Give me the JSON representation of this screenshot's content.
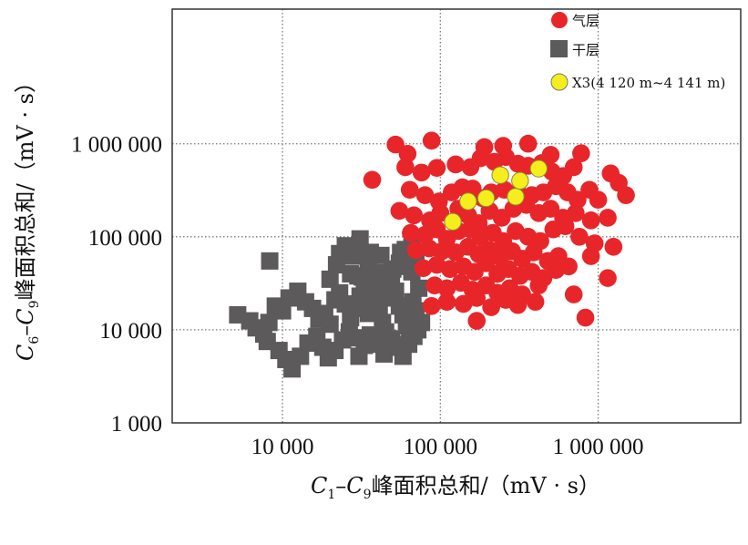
{
  "chart_data": {
    "type": "scatter",
    "title": "",
    "xlabel": "C1–C9峰面积总和/（mV·s）",
    "ylabel": "C6–C9峰面积总和/（mV·s）",
    "xlabel_parts": {
      "c": "C",
      "s1": "1",
      "dash": "–",
      "c2": "C",
      "s2": "9",
      "rest": "峰面积总和/（mV · s）"
    },
    "ylabel_parts": {
      "c": "C",
      "s1": "6",
      "dash": "–",
      "c2": "C",
      "s2": "9",
      "rest": "峰面积总和/（mV · s）"
    },
    "x_scale": "log",
    "y_scale": "log",
    "xlim": [
      2000,
      8000000
    ],
    "ylim": [
      1000,
      28000000
    ],
    "x_ticks": [
      {
        "value": 10000,
        "label": "10 000"
      },
      {
        "value": 100000,
        "label": "100 000"
      },
      {
        "value": 1000000,
        "label": "1 000 000"
      }
    ],
    "y_ticks": [
      {
        "value": 1000,
        "label": "1 000"
      },
      {
        "value": 10000,
        "label": "10 000"
      },
      {
        "value": 100000,
        "label": "100 000"
      },
      {
        "value": 1000000,
        "label": "1 000 000"
      }
    ],
    "grid": true,
    "legend_position": "top-right",
    "series": [
      {
        "name": "气层",
        "marker": "circle",
        "color": "#e8262a",
        "points": [
          [
            37000,
            410000
          ],
          [
            52000,
            980000
          ],
          [
            62000,
            780000
          ],
          [
            88000,
            1080000
          ],
          [
            190000,
            920000
          ],
          [
            250000,
            950000
          ],
          [
            360000,
            1000000
          ],
          [
            500000,
            760000
          ],
          [
            780000,
            790000
          ],
          [
            60000,
            560000
          ],
          [
            76000,
            490000
          ],
          [
            95000,
            550000
          ],
          [
            125000,
            600000
          ],
          [
            155000,
            560000
          ],
          [
            180000,
            700000
          ],
          [
            220000,
            640000
          ],
          [
            260000,
            720000
          ],
          [
            310000,
            610000
          ],
          [
            360000,
            580000
          ],
          [
            440000,
            620000
          ],
          [
            510000,
            500000
          ],
          [
            600000,
            450000
          ],
          [
            700000,
            560000
          ],
          [
            1200000,
            480000
          ],
          [
            1350000,
            380000
          ],
          [
            1500000,
            280000
          ],
          [
            64000,
            320000
          ],
          [
            80000,
            280000
          ],
          [
            98000,
            240000
          ],
          [
            118000,
            300000
          ],
          [
            138000,
            340000
          ],
          [
            160000,
            330000
          ],
          [
            185000,
            260000
          ],
          [
            210000,
            300000
          ],
          [
            255000,
            320000
          ],
          [
            310000,
            300000
          ],
          [
            380000,
            280000
          ],
          [
            450000,
            300000
          ],
          [
            540000,
            350000
          ],
          [
            640000,
            300000
          ],
          [
            740000,
            250000
          ],
          [
            880000,
            320000
          ],
          [
            1000000,
            250000
          ],
          [
            55000,
            190000
          ],
          [
            68000,
            170000
          ],
          [
            86000,
            150000
          ],
          [
            100000,
            180000
          ],
          [
            130000,
            200000
          ],
          [
            150000,
            170000
          ],
          [
            175000,
            140000
          ],
          [
            205000,
            190000
          ],
          [
            245000,
            160000
          ],
          [
            290000,
            200000
          ],
          [
            350000,
            220000
          ],
          [
            420000,
            180000
          ],
          [
            500000,
            200000
          ],
          [
            600000,
            160000
          ],
          [
            720000,
            180000
          ],
          [
            900000,
            150000
          ],
          [
            1150000,
            160000
          ],
          [
            65000,
            110000
          ],
          [
            80000,
            105000
          ],
          [
            95000,
            120000
          ],
          [
            110000,
            95000
          ],
          [
            130000,
            115000
          ],
          [
            155000,
            120000
          ],
          [
            180000,
            100000
          ],
          [
            215000,
            110000
          ],
          [
            250000,
            90000
          ],
          [
            300000,
            115000
          ],
          [
            360000,
            100000
          ],
          [
            430000,
            90000
          ],
          [
            520000,
            120000
          ],
          [
            620000,
            130000
          ],
          [
            760000,
            100000
          ],
          [
            950000,
            85000
          ],
          [
            1250000,
            78000
          ],
          [
            70000,
            72000
          ],
          [
            85000,
            75000
          ],
          [
            102000,
            70000
          ],
          [
            125000,
            68000
          ],
          [
            150000,
            78000
          ],
          [
            175000,
            65000
          ],
          [
            205000,
            72000
          ],
          [
            240000,
            60000
          ],
          [
            285000,
            70000
          ],
          [
            330000,
            58000
          ],
          [
            390000,
            68000
          ],
          [
            480000,
            55000
          ],
          [
            560000,
            62000
          ],
          [
            650000,
            48000
          ],
          [
            900000,
            62000
          ],
          [
            78000,
            46000
          ],
          [
            95000,
            50000
          ],
          [
            115000,
            45000
          ],
          [
            140000,
            48000
          ],
          [
            165000,
            42000
          ],
          [
            195000,
            52000
          ],
          [
            230000,
            40000
          ],
          [
            270000,
            45000
          ],
          [
            320000,
            38000
          ],
          [
            380000,
            42000
          ],
          [
            450000,
            36000
          ],
          [
            540000,
            44000
          ],
          [
            1150000,
            36000
          ],
          [
            92000,
            30000
          ],
          [
            110000,
            28000
          ],
          [
            135000,
            32000
          ],
          [
            160000,
            27000
          ],
          [
            195000,
            30000
          ],
          [
            230000,
            25000
          ],
          [
            275000,
            28000
          ],
          [
            330000,
            24000
          ],
          [
            420000,
            30000
          ],
          [
            700000,
            24000
          ],
          [
            88000,
            18000
          ],
          [
            110000,
            20000
          ],
          [
            140000,
            19000
          ],
          [
            170000,
            22000
          ],
          [
            210000,
            17500
          ],
          [
            260000,
            21000
          ],
          [
            310000,
            18500
          ],
          [
            400000,
            20000
          ],
          [
            170000,
            12500
          ],
          [
            830000,
            13500
          ]
        ]
      },
      {
        "name": "干层",
        "marker": "square",
        "color": "#5c5a5b",
        "points": [
          [
            5200,
            14500
          ],
          [
            6200,
            12500
          ],
          [
            6800,
            10500
          ],
          [
            7600,
            9000
          ],
          [
            8200,
            12000
          ],
          [
            9000,
            18000
          ],
          [
            10000,
            16000
          ],
          [
            11000,
            22000
          ],
          [
            12500,
            26000
          ],
          [
            14000,
            20000
          ],
          [
            15500,
            17000
          ],
          [
            17000,
            13000
          ],
          [
            18500,
            15000
          ],
          [
            20000,
            11500
          ],
          [
            21500,
            21000
          ],
          [
            23000,
            25000
          ],
          [
            25000,
            19000
          ],
          [
            27000,
            13500
          ],
          [
            29000,
            17000
          ],
          [
            31000,
            23000
          ],
          [
            33000,
            28000
          ],
          [
            35000,
            15000
          ],
          [
            37000,
            19500
          ],
          [
            39000,
            24500
          ],
          [
            41000,
            16000
          ],
          [
            43000,
            12000
          ],
          [
            45000,
            9500
          ],
          [
            47000,
            22000
          ],
          [
            49000,
            30000
          ],
          [
            52000,
            26000
          ],
          [
            55000,
            18000
          ],
          [
            58000,
            14500
          ],
          [
            61000,
            11000
          ],
          [
            64000,
            9000
          ],
          [
            67000,
            20000
          ],
          [
            70000,
            16000
          ],
          [
            73000,
            28000
          ],
          [
            76000,
            12000
          ],
          [
            8000,
            7500
          ],
          [
            9500,
            6000
          ],
          [
            10500,
            4800
          ],
          [
            11500,
            3800
          ],
          [
            13000,
            5200
          ],
          [
            14500,
            7200
          ],
          [
            16500,
            8500
          ],
          [
            18000,
            6500
          ],
          [
            19500,
            5000
          ],
          [
            21500,
            6000
          ],
          [
            24000,
            7800
          ],
          [
            26500,
            9500
          ],
          [
            28500,
            8200
          ],
          [
            30500,
            5200
          ],
          [
            33000,
            6800
          ],
          [
            36000,
            8800
          ],
          [
            40000,
            7000
          ],
          [
            44000,
            5500
          ],
          [
            49000,
            8000
          ],
          [
            53000,
            6500
          ],
          [
            58000,
            5200
          ],
          [
            63000,
            7000
          ],
          [
            68000,
            8500
          ],
          [
            72000,
            10000
          ],
          [
            8300,
            55000
          ],
          [
            20000,
            35000
          ],
          [
            22000,
            50000
          ],
          [
            27000,
            40000
          ],
          [
            30000,
            38000
          ],
          [
            32000,
            37000
          ],
          [
            35000,
            46000
          ],
          [
            38000,
            33000
          ],
          [
            41000,
            41000
          ],
          [
            45000,
            38000
          ],
          [
            50000,
            45000
          ],
          [
            55000,
            52000
          ],
          [
            60000,
            48000
          ],
          [
            66000,
            42000
          ],
          [
            70000,
            60000
          ],
          [
            23000,
            66000
          ],
          [
            25000,
            80000
          ],
          [
            28000,
            62000
          ],
          [
            31000,
            95000
          ],
          [
            36000,
            68000
          ],
          [
            42000,
            63000
          ],
          [
            56000,
            68000
          ],
          [
            60000,
            73000
          ],
          [
            66000,
            78000
          ]
        ]
      },
      {
        "name": "X3(4 120 m~4 141 m)",
        "marker": "circle",
        "color": "#f4ee1c",
        "points": [
          [
            120000,
            145000
          ],
          [
            150000,
            240000
          ],
          [
            195000,
            260000
          ],
          [
            240000,
            460000
          ],
          [
            300000,
            270000
          ],
          [
            320000,
            400000
          ],
          [
            420000,
            540000
          ]
        ]
      }
    ]
  }
}
